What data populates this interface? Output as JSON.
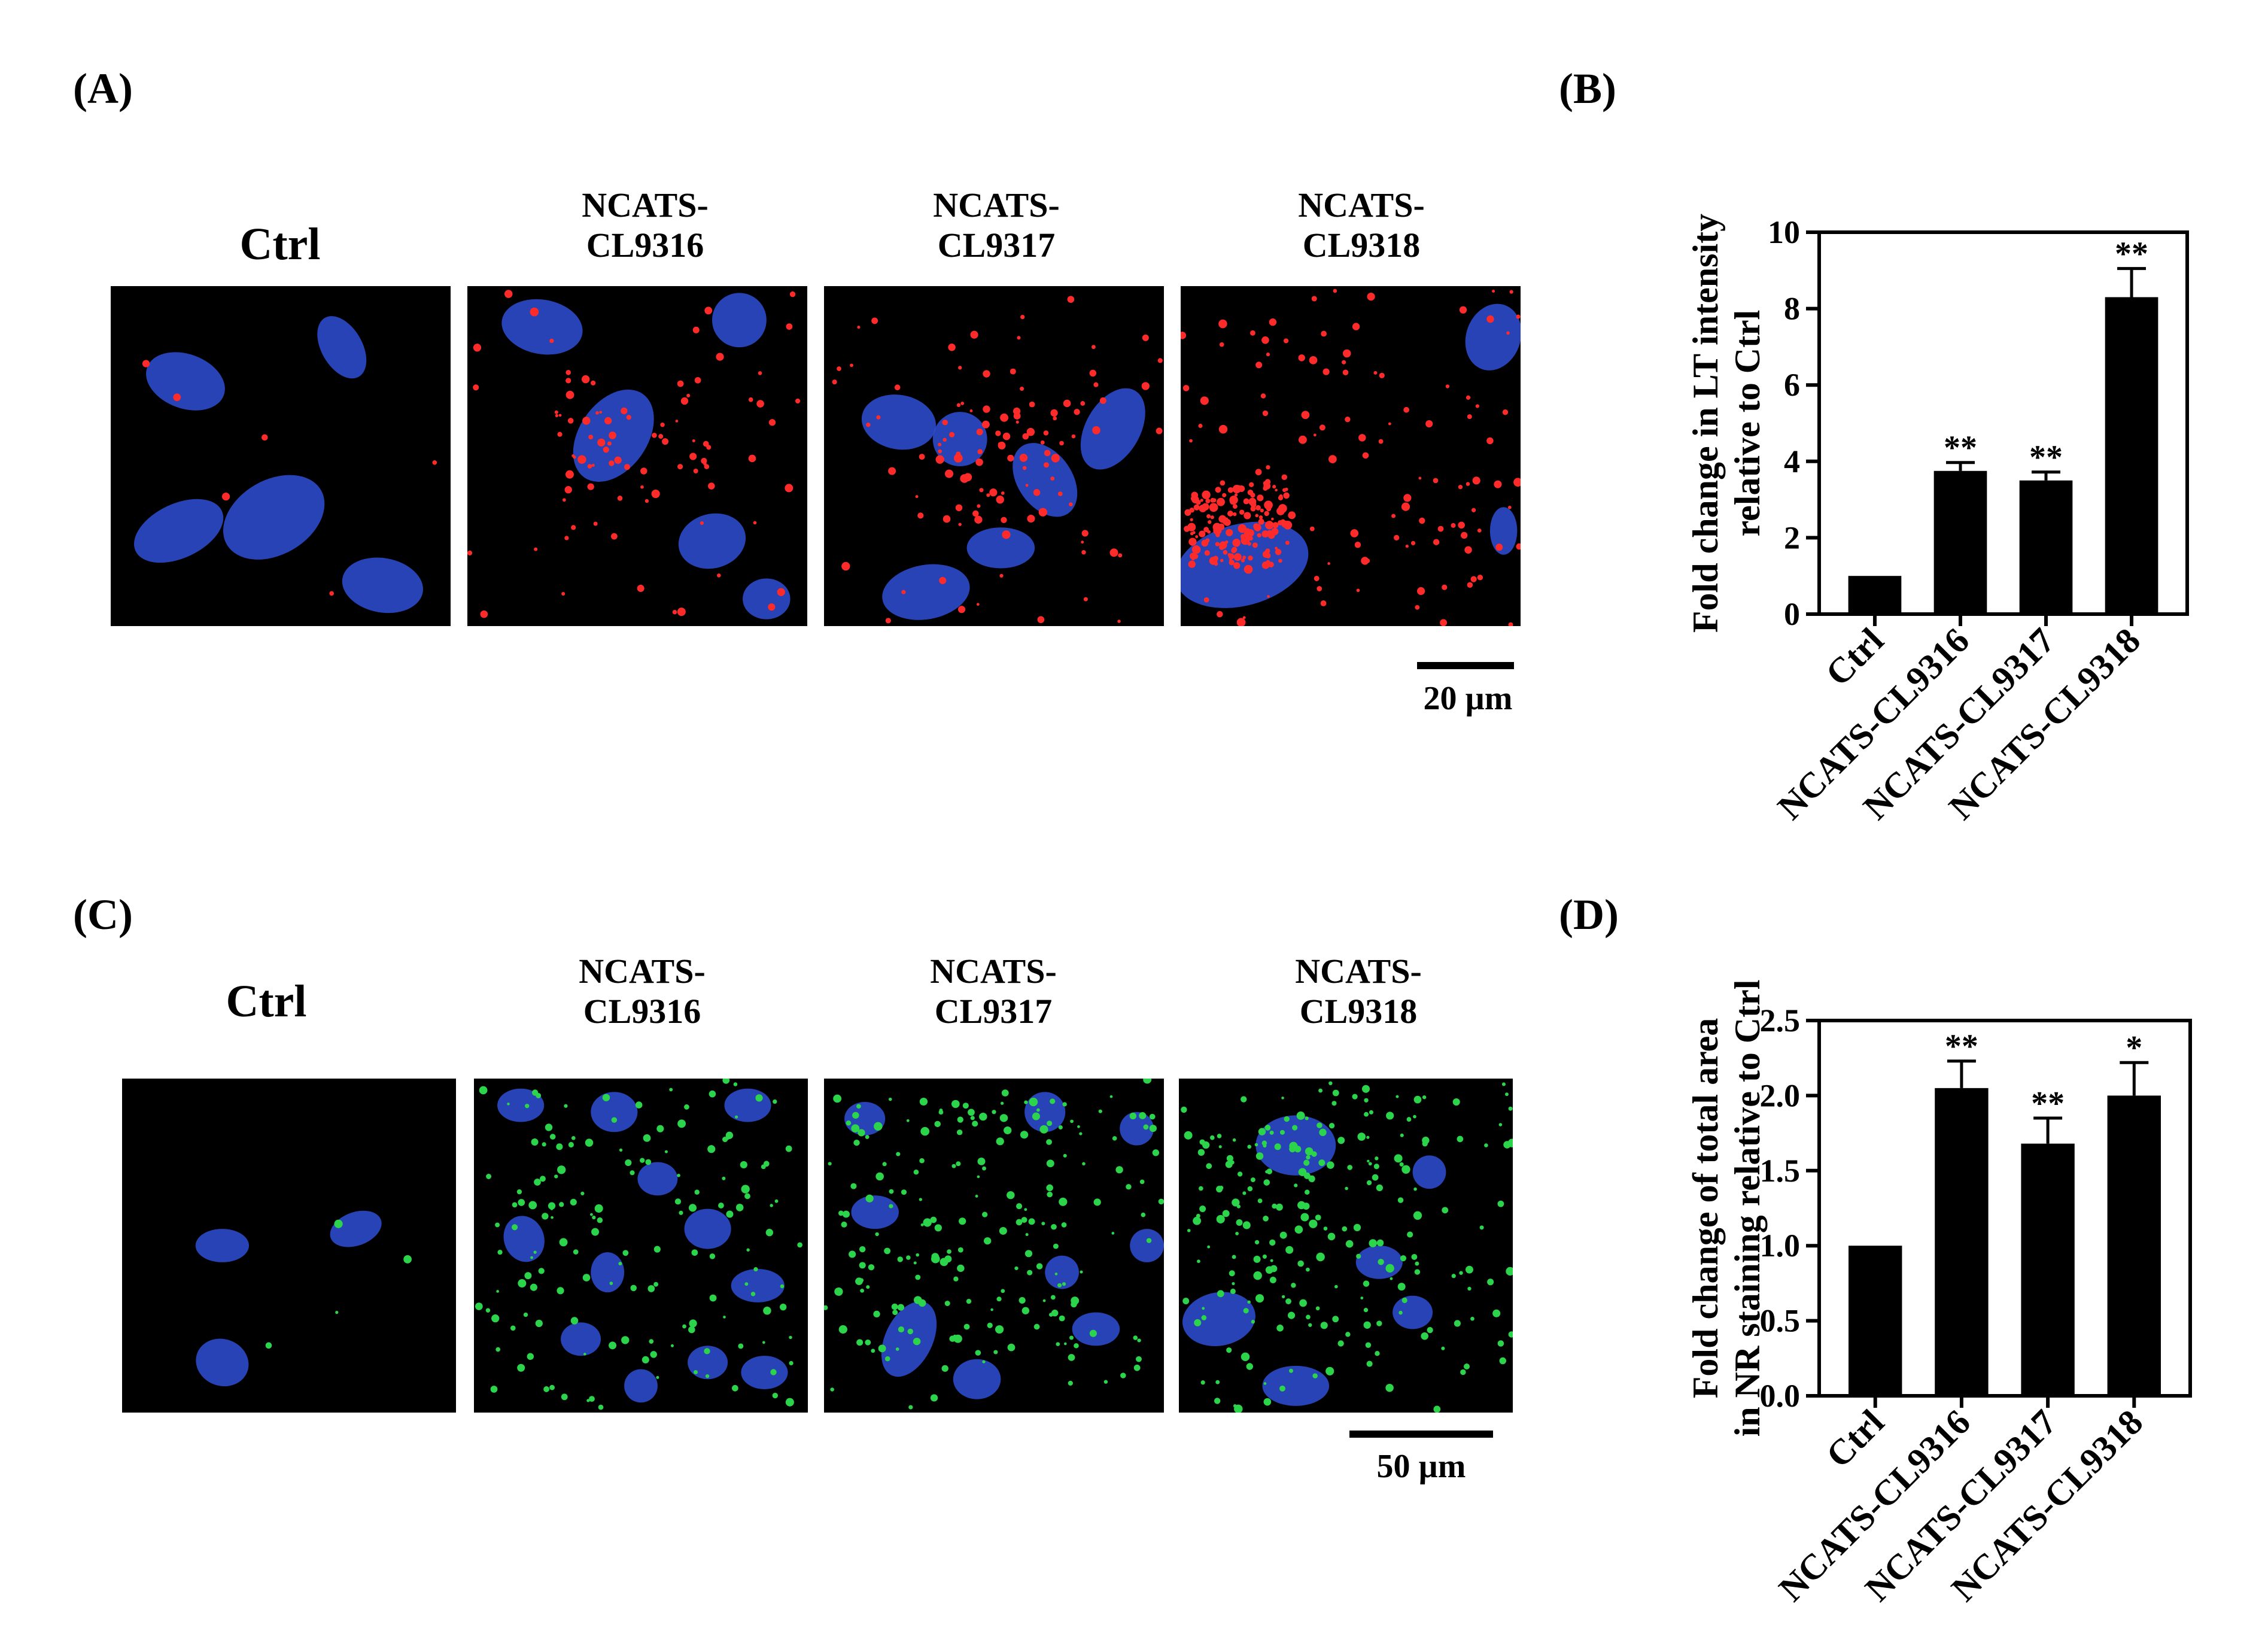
{
  "panel_letters": {
    "a": "(A)",
    "b": "(B)",
    "c": "(C)",
    "d": "(D)"
  },
  "row_a": {
    "labels": [
      {
        "line1": "Ctrl",
        "line2": ""
      },
      {
        "line1": "NCATS-",
        "line2": "CL9316"
      },
      {
        "line1": "NCATS-",
        "line2": "CL9317"
      },
      {
        "line1": "NCATS-",
        "line2": "CL9318"
      }
    ],
    "scale": "20 µm",
    "stain_color": "#ff2a2a",
    "nucleus_color": "#2f4fd6"
  },
  "row_c": {
    "labels": [
      {
        "line1": "Ctrl",
        "line2": ""
      },
      {
        "line1": "NCATS-",
        "line2": "CL9316"
      },
      {
        "line1": "NCATS-",
        "line2": "CL9317"
      },
      {
        "line1": "NCATS-",
        "line2": "CL9318"
      }
    ],
    "scale": "50 µm",
    "stain_color": "#2bd44a",
    "nucleus_color": "#2f4fd6"
  },
  "chart_data": [
    {
      "type": "bar",
      "panel": "(B)",
      "categories": [
        "Ctrl",
        "NCATS-CL9316",
        "NCATS-CL9317",
        "NCATS-CL9318"
      ],
      "values": [
        1.0,
        3.75,
        3.5,
        8.3
      ],
      "errors": [
        0,
        0.22,
        0.22,
        0.75
      ],
      "significance": [
        "",
        "**",
        "**",
        "**"
      ],
      "ylabel_line1": "Fold change in LT intensity",
      "ylabel_line2": "relative to Ctrl",
      "ylim": [
        0,
        10
      ],
      "yticks": [
        0,
        2,
        4,
        6,
        8,
        10
      ],
      "ytick_labels": [
        "0",
        "2",
        "4",
        "6",
        "8",
        "10"
      ],
      "bar_color": "#000000"
    },
    {
      "type": "bar",
      "panel": "(D)",
      "categories": [
        "Ctrl",
        "NCATS-CL9316",
        "NCATS-CL9317",
        "NCATS-CL9318"
      ],
      "values": [
        1.0,
        2.05,
        1.68,
        2.0
      ],
      "errors": [
        0,
        0.18,
        0.17,
        0.22
      ],
      "significance": [
        "",
        "**",
        "**",
        "*"
      ],
      "ylabel_line1": "Fold change of total area",
      "ylabel_line2": "in NR staining relative to Ctrl",
      "ylim": [
        0,
        2.5
      ],
      "yticks": [
        0,
        0.5,
        1.0,
        1.5,
        2.0,
        2.5
      ],
      "ytick_labels": [
        "0.0",
        "0.5",
        "1.0",
        "1.5",
        "2.0",
        "2.5"
      ],
      "bar_color": "#000000"
    }
  ]
}
